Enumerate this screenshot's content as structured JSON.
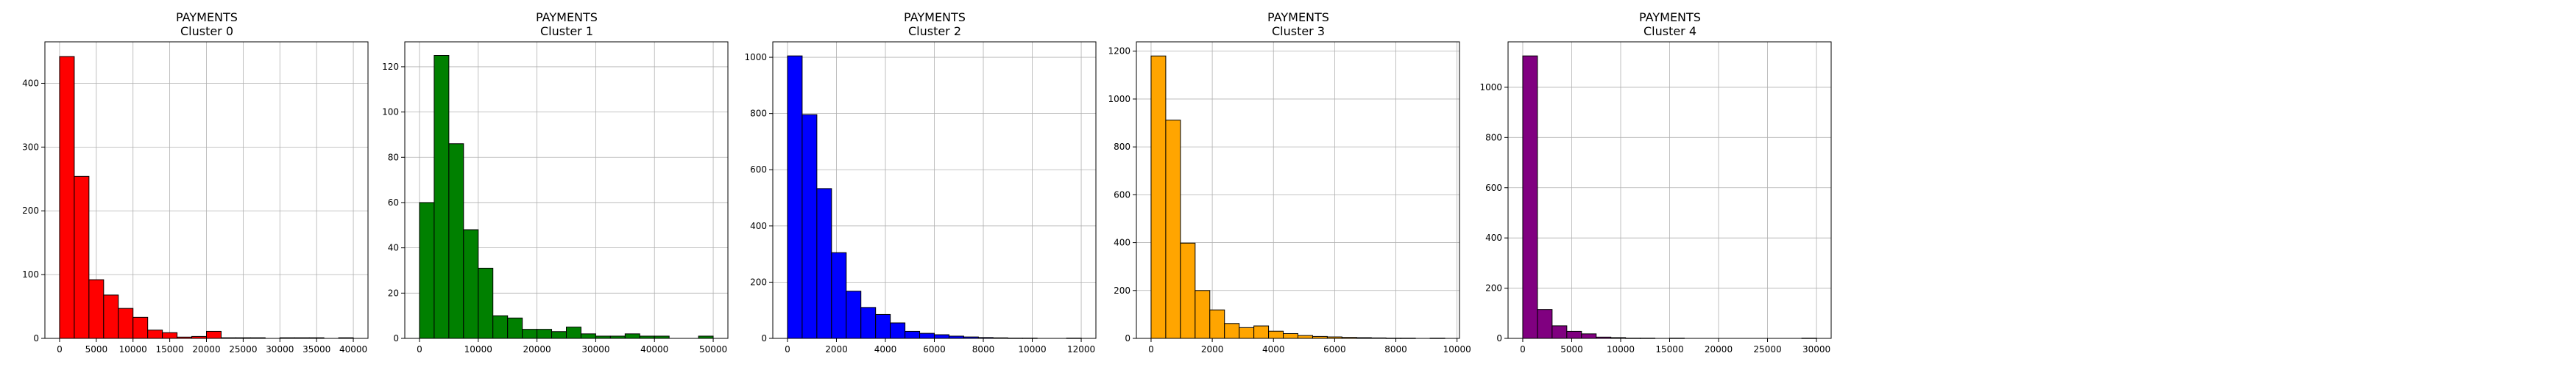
{
  "chart_data": [
    {
      "type": "bar",
      "title": "PAYMENTS",
      "subtitle": "Cluster 0",
      "color": "#ff0000",
      "grid": true,
      "bin_edges": [
        0,
        2000,
        4000,
        6000,
        8000,
        10000,
        12000,
        14000,
        16000,
        18000,
        20000,
        22000,
        24000,
        26000,
        28000,
        30000,
        32000,
        34000,
        36000,
        38000,
        40000
      ],
      "values": [
        442,
        254,
        92,
        68,
        47,
        33,
        13,
        9,
        2,
        3,
        11,
        1,
        1,
        1,
        0,
        1,
        1,
        1,
        0,
        1
      ],
      "xlim": [
        -2000,
        42000
      ],
      "ylim": [
        0,
        465
      ],
      "xticks": [
        0,
        5000,
        10000,
        15000,
        20000,
        25000,
        30000,
        35000,
        40000
      ],
      "xtick_labels": [
        "0",
        "5000",
        "10000",
        "15000",
        "20000",
        "25000",
        "30000",
        "35000",
        "40000"
      ],
      "yticks": [
        0,
        100,
        200,
        300,
        400
      ],
      "ytick_labels": [
        "0",
        "100",
        "200",
        "300",
        "400"
      ]
    },
    {
      "type": "bar",
      "title": "PAYMENTS",
      "subtitle": "Cluster 1",
      "color": "#008000",
      "grid": true,
      "bin_edges": [
        0,
        2500,
        5000,
        7500,
        10000,
        12500,
        15000,
        17500,
        20000,
        22500,
        25000,
        27500,
        30000,
        32500,
        35000,
        37500,
        40000,
        42500,
        45000,
        47500,
        50000
      ],
      "values": [
        60,
        125,
        86,
        48,
        31,
        10,
        9,
        4,
        4,
        3,
        5,
        2,
        1,
        1,
        2,
        1,
        1,
        0,
        0,
        1
      ],
      "xlim": [
        -2500,
        52500
      ],
      "ylim": [
        0,
        131
      ],
      "xticks": [
        0,
        10000,
        20000,
        30000,
        40000,
        50000
      ],
      "xtick_labels": [
        "0",
        "10000",
        "20000",
        "30000",
        "40000",
        "50000"
      ],
      "yticks": [
        0,
        20,
        40,
        60,
        80,
        100,
        120
      ],
      "ytick_labels": [
        "0",
        "20",
        "40",
        "60",
        "80",
        "100",
        "120"
      ]
    },
    {
      "type": "bar",
      "title": "PAYMENTS",
      "subtitle": "Cluster 2",
      "color": "#0000ff",
      "grid": true,
      "bin_edges": [
        0,
        600,
        1200,
        1800,
        2400,
        3000,
        3600,
        4200,
        4800,
        5400,
        6000,
        6600,
        7200,
        7800,
        8400,
        9000,
        9600,
        10200,
        10800,
        11400,
        12000
      ],
      "values": [
        1005,
        796,
        533,
        305,
        168,
        110,
        85,
        55,
        25,
        18,
        13,
        8,
        5,
        3,
        2,
        1,
        1,
        0,
        0,
        1
      ],
      "xlim": [
        -600,
        12600
      ],
      "ylim": [
        0,
        1055
      ],
      "xticks": [
        0,
        2000,
        4000,
        6000,
        8000,
        10000,
        12000
      ],
      "xtick_labels": [
        "0",
        "2000",
        "4000",
        "6000",
        "8000",
        "10000",
        "12000"
      ],
      "yticks": [
        0,
        200,
        400,
        600,
        800,
        1000
      ],
      "ytick_labels": [
        "0",
        "200",
        "400",
        "600",
        "800",
        "1000"
      ]
    },
    {
      "type": "bar",
      "title": "PAYMENTS",
      "subtitle": "Cluster 3",
      "color": "#ffa500",
      "grid": true,
      "bin_edges": [
        0,
        480,
        960,
        1440,
        1920,
        2400,
        2880,
        3360,
        3840,
        4320,
        4800,
        5280,
        5760,
        6240,
        6720,
        7200,
        7680,
        8160,
        8640,
        9120,
        9600
      ],
      "values": [
        1180,
        912,
        398,
        200,
        119,
        62,
        45,
        52,
        30,
        20,
        12,
        8,
        6,
        4,
        3,
        2,
        1,
        1,
        0,
        1
      ],
      "xlim": [
        -480,
        10080
      ],
      "ylim": [
        0,
        1239
      ],
      "xticks": [
        0,
        2000,
        4000,
        6000,
        8000,
        10000
      ],
      "xtick_labels": [
        "0",
        "2000",
        "4000",
        "6000",
        "8000",
        "10000"
      ],
      "yticks": [
        0,
        200,
        400,
        600,
        800,
        1000,
        1200
      ],
      "ytick_labels": [
        "0",
        "200",
        "400",
        "600",
        "800",
        "1000",
        "1200"
      ]
    },
    {
      "type": "bar",
      "title": "PAYMENTS",
      "subtitle": "Cluster 4",
      "color": "#800080",
      "grid": true,
      "bin_edges": [
        0,
        1500,
        3000,
        4500,
        6000,
        7500,
        9000,
        10500,
        12000,
        13500,
        15000,
        16500,
        18000,
        19500,
        21000,
        22500,
        24000,
        25500,
        27000,
        28500,
        30000
      ],
      "values": [
        1125,
        115,
        50,
        28,
        18,
        5,
        3,
        1,
        1,
        0,
        1,
        0,
        0,
        0,
        0,
        0,
        0,
        0,
        0,
        1
      ],
      "xlim": [
        -1500,
        31500
      ],
      "ylim": [
        0,
        1181
      ],
      "xticks": [
        0,
        5000,
        10000,
        15000,
        20000,
        25000,
        30000
      ],
      "xtick_labels": [
        "0",
        "5000",
        "10000",
        "15000",
        "20000",
        "25000",
        "30000"
      ],
      "yticks": [
        0,
        200,
        400,
        600,
        800,
        1000
      ],
      "ytick_labels": [
        "0",
        "200",
        "400",
        "600",
        "800",
        "1000"
      ]
    }
  ]
}
